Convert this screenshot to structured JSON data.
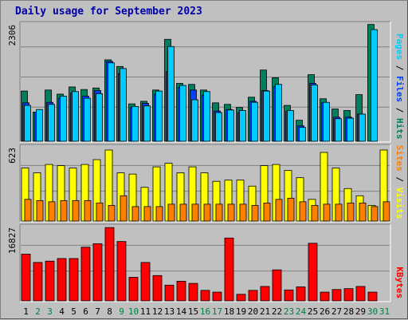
{
  "chart_data": {
    "type": "bar",
    "title": "Daily usage for September 2023",
    "days": [
      "1",
      "2",
      "3",
      "4",
      "5",
      "6",
      "7",
      "8",
      "9",
      "10",
      "11",
      "12",
      "13",
      "14",
      "15",
      "16",
      "17",
      "18",
      "19",
      "20",
      "21",
      "22",
      "23",
      "24",
      "25",
      "26",
      "27",
      "28",
      "29",
      "30",
      "31"
    ],
    "weekend_days": [
      "2",
      "3",
      "9",
      "10",
      "16",
      "17",
      "23",
      "24",
      "30",
      "31"
    ],
    "colors": {
      "hits": "#007f5f",
      "files": "#0040ff",
      "pages": "#00ccff",
      "visits": "#ffff00",
      "sites": "#ff8000",
      "kbytes": "#ff0000",
      "weekday_label": "#000000",
      "weekend_label": "#007f3f"
    },
    "hits_panel": {
      "ymax": 2306,
      "ymax_label": "2306",
      "right_labels": [
        {
          "text": "Pages",
          "color": "#00ccff"
        },
        {
          "text": " / ",
          "color": "#000000"
        },
        {
          "text": "Files",
          "color": "#0040ff"
        },
        {
          "text": " / ",
          "color": "#000000"
        },
        {
          "text": "Hits",
          "color": "#007f5f"
        }
      ],
      "hits": [
        980,
        570,
        1000,
        920,
        1060,
        1010,
        1040,
        1590,
        1460,
        730,
        780,
        1000,
        1990,
        1130,
        1110,
        1000,
        750,
        720,
        660,
        860,
        1390,
        1240,
        700,
        410,
        1300,
        830,
        630,
        600,
        910,
        2280,
        0
      ],
      "files": [
        750,
        570,
        760,
        840,
        940,
        880,
        990,
        1560,
        1320,
        660,
        740,
        920,
        1360,
        1050,
        1000,
        900,
        590,
        620,
        560,
        780,
        990,
        1070,
        580,
        300,
        1130,
        750,
        470,
        470,
        530,
        0,
        0
      ],
      "pages": [
        700,
        620,
        720,
        880,
        970,
        840,
        930,
        1530,
        1420,
        680,
        690,
        980,
        1850,
        1090,
        810,
        970,
        560,
        610,
        600,
        760,
        980,
        1110,
        600,
        270,
        1100,
        760,
        440,
        450,
        530,
        2180,
        0
      ]
    },
    "visits_panel": {
      "ymax": 623,
      "ymax_label": "623",
      "right_labels": [
        {
          "text": "Sites",
          "color": "#ff8000"
        },
        {
          "text": " / ",
          "color": "#000000"
        },
        {
          "text": "Visits",
          "color": "#ffff00"
        }
      ],
      "visits": [
        440,
        400,
        470,
        460,
        440,
        470,
        510,
        590,
        400,
        390,
        280,
        450,
        480,
        400,
        450,
        400,
        330,
        340,
        340,
        290,
        460,
        470,
        420,
        360,
        180,
        570,
        440,
        270,
        210,
        130,
        590
      ],
      "sites": [
        180,
        170,
        160,
        170,
        170,
        170,
        150,
        130,
        210,
        120,
        120,
        120,
        140,
        140,
        140,
        140,
        140,
        140,
        140,
        130,
        150,
        180,
        190,
        160,
        130,
        140,
        140,
        150,
        150,
        120,
        160
      ]
    },
    "kbytes_panel": {
      "ymax": 16827,
      "ymax_label": "16827",
      "right_labels": [
        {
          "text": "KBytes",
          "color": "#ff0000"
        }
      ],
      "kbytes": [
        10700,
        8800,
        9100,
        9700,
        9700,
        12300,
        13100,
        16800,
        13600,
        5400,
        8800,
        5800,
        3600,
        4500,
        4000,
        2400,
        2000,
        14400,
        1500,
        2400,
        3300,
        7100,
        2500,
        3200,
        13200,
        2000,
        2600,
        2800,
        3300,
        2000,
        0
      ]
    }
  }
}
